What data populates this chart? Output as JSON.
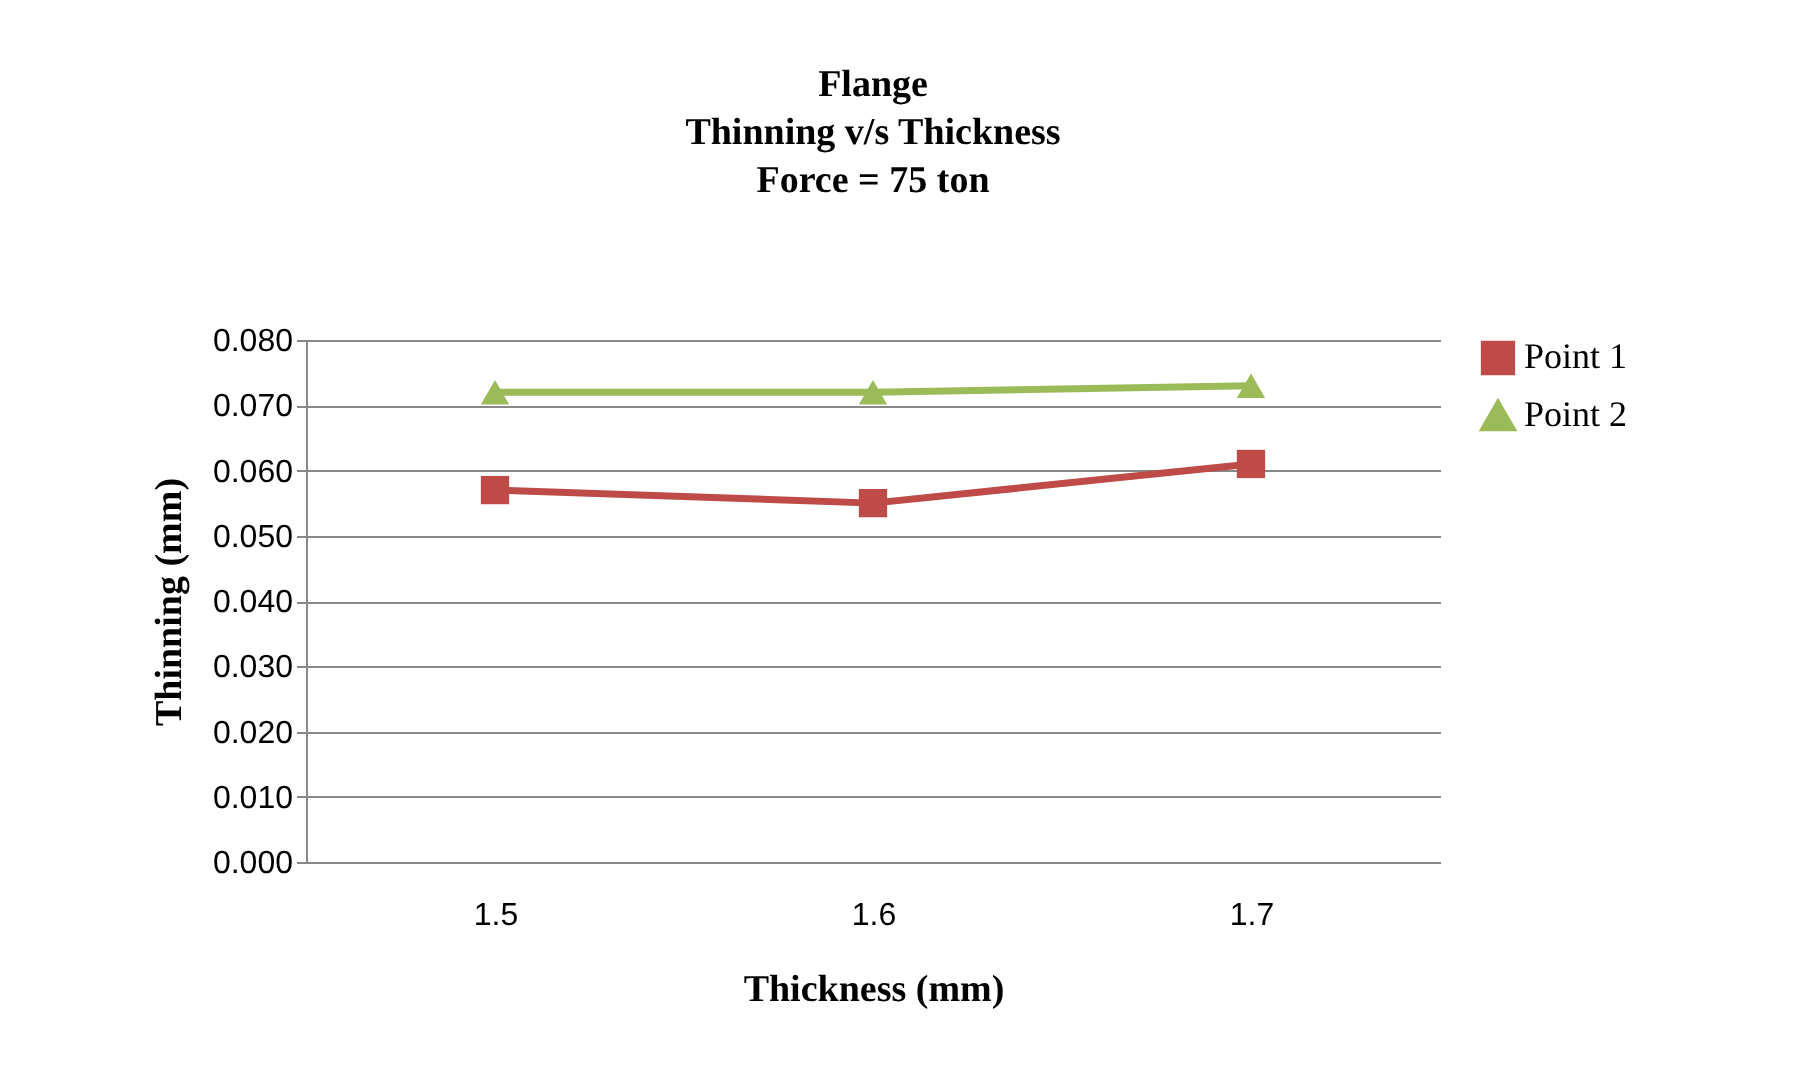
{
  "chart_data": {
    "type": "line",
    "title": [
      "Flange",
      "Thinning v/s Thickness",
      "Force = 75 ton"
    ],
    "xlabel": "Thickness (mm)",
    "ylabel": "Thinning (mm)",
    "categories": [
      "1.5",
      "1.6",
      "1.7"
    ],
    "series": [
      {
        "name": "Point 1",
        "color": "#be4b48",
        "marker": "square",
        "values": [
          0.057,
          0.055,
          0.061
        ]
      },
      {
        "name": "Point 2",
        "color": "#9bbb59",
        "marker": "triangle",
        "values": [
          0.072,
          0.072,
          0.073
        ]
      }
    ],
    "ylim": [
      0,
      0.08
    ],
    "yticks": [
      {
        "value": 0,
        "label": "0.000"
      },
      {
        "value": 0.01,
        "label": "0.010"
      },
      {
        "value": 0.02,
        "label": "0.020"
      },
      {
        "value": 0.03,
        "label": "0.030"
      },
      {
        "value": 0.04,
        "label": "0.040"
      },
      {
        "value": 0.05,
        "label": "0.050"
      },
      {
        "value": 0.06,
        "label": "0.060"
      },
      {
        "value": 0.07,
        "label": "0.070"
      },
      {
        "value": 0.08,
        "label": "0.080"
      }
    ],
    "grid": "y",
    "legend": "right",
    "line_style": "solid"
  }
}
